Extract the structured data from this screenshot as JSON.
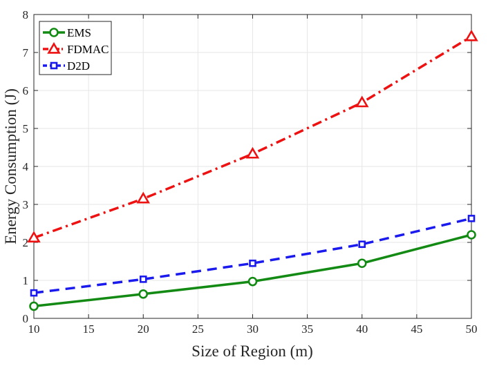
{
  "chart_data": {
    "type": "line",
    "title": "",
    "xlabel": "Size of Region (m)",
    "ylabel": "Energy Consumption (J)",
    "xlim": [
      10,
      50
    ],
    "ylim": [
      0,
      8
    ],
    "xticks": [
      10,
      15,
      20,
      25,
      30,
      35,
      40,
      45,
      50
    ],
    "yticks": [
      0,
      1,
      2,
      3,
      4,
      5,
      6,
      7,
      8
    ],
    "grid": true,
    "legend_position": "top-left",
    "x": [
      10,
      20,
      30,
      40,
      50
    ],
    "series": [
      {
        "name": "EMS",
        "values": [
          0.32,
          0.64,
          0.97,
          1.45,
          2.2
        ],
        "color": "#138a13",
        "line": "solid",
        "marker": "circle"
      },
      {
        "name": "FDMAC",
        "values": [
          2.12,
          3.15,
          4.33,
          5.68,
          7.42
        ],
        "color": "#ee1111",
        "line": "dashdot",
        "marker": "triangle"
      },
      {
        "name": "D2D",
        "values": [
          0.67,
          1.03,
          1.45,
          1.95,
          2.63
        ],
        "color": "#1a1aee",
        "line": "dashed",
        "marker": "square"
      }
    ]
  }
}
